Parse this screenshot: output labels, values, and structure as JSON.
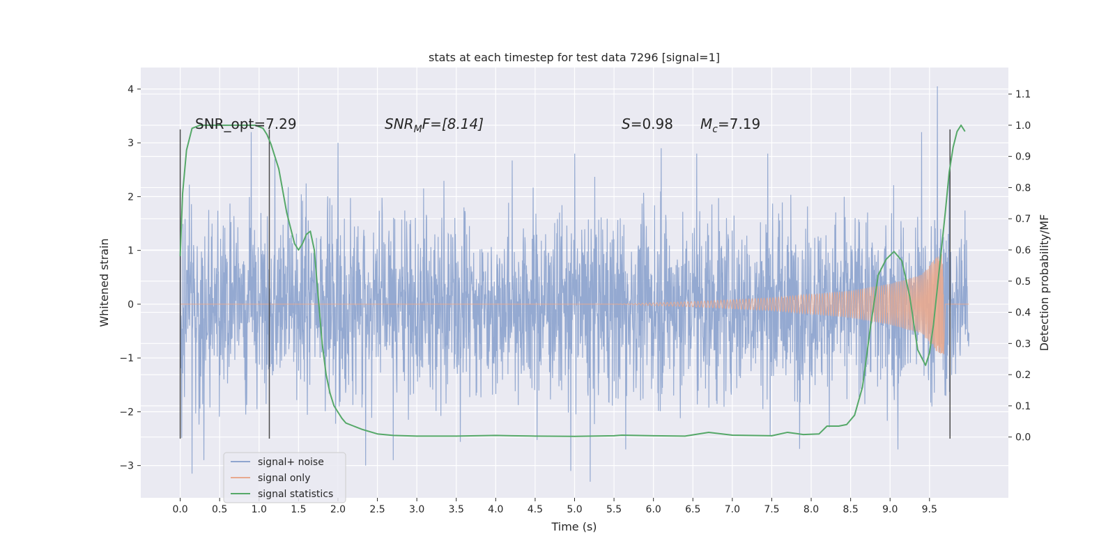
{
  "chart_data": {
    "type": "line",
    "title": "stats at each timestep for test data 7296 [signal=1]",
    "xlabel": "Time (s)",
    "ylabel": "Whitened strain",
    "y2label": "Detection probability/MF",
    "xlim": [
      -0.5,
      10.5
    ],
    "ylim": [
      -3.6,
      4.4
    ],
    "y2lim": [
      -0.195,
      1.185
    ],
    "x_ticks": [
      "0.0",
      "0.5",
      "1.0",
      "1.5",
      "2.0",
      "2.5",
      "3.0",
      "3.5",
      "4.0",
      "4.5",
      "5.0",
      "5.5",
      "6.0",
      "6.5",
      "7.0",
      "7.5",
      "8.0",
      "8.5",
      "9.0",
      "9.5"
    ],
    "y_ticks": [
      "−3",
      "−2",
      "−1",
      "0",
      "1",
      "2",
      "3",
      "4"
    ],
    "y2_ticks": [
      "0.0",
      "0.1",
      "0.2",
      "0.3",
      "0.4",
      "0.5",
      "0.6",
      "0.7",
      "0.8",
      "0.9",
      "1.0",
      "1.1"
    ],
    "grid": true,
    "annotations": {
      "snr_opt": "SNR_opt=7.29",
      "snr_mf_base": "SNR",
      "snr_mf_sub": "M",
      "snr_mf_rest": "F=[8.14]",
      "s_label": "S",
      "s_value": "=0.98",
      "mc_base": "M",
      "mc_sub": "c",
      "mc_value": "=7.19"
    },
    "vertical_markers": [
      {
        "x": 0.0,
        "ymin": -2.5,
        "ymax": 3.25
      },
      {
        "x": 1.13,
        "ymin": -2.5,
        "ymax": 3.25
      },
      {
        "x": 9.76,
        "ymin": -2.5,
        "ymax": 3.25
      }
    ],
    "series": [
      {
        "name": "signal+ noise",
        "color": "#8fa5cf",
        "axis": "left",
        "t_range": [
          0.0,
          10.0
        ],
        "typical_envelope": [
          -1.6,
          1.6
        ],
        "peaks": [
          {
            "x": 0.15,
            "y": 1.2
          },
          {
            "x": 0.9,
            "y": 3.2
          },
          {
            "x": 1.2,
            "y": 2.7
          },
          {
            "x": 2.0,
            "y": 3.0
          },
          {
            "x": 5.0,
            "y": 2.8
          },
          {
            "x": 6.1,
            "y": 2.9
          },
          {
            "x": 6.55,
            "y": 2.8
          },
          {
            "x": 7.45,
            "y": 2.8
          },
          {
            "x": 9.4,
            "y": 3.2
          },
          {
            "x": 9.6,
            "y": 4.05
          }
        ],
        "troughs": [
          {
            "x": 0.15,
            "y": -3.15
          },
          {
            "x": 0.3,
            "y": -2.9
          },
          {
            "x": 2.35,
            "y": -3.0
          },
          {
            "x": 2.7,
            "y": -2.9
          },
          {
            "x": 4.95,
            "y": -3.1
          },
          {
            "x": 5.2,
            "y": -3.3
          },
          {
            "x": 5.65,
            "y": -2.7
          },
          {
            "x": 9.1,
            "y": -2.7
          }
        ]
      },
      {
        "name": "signal only",
        "color": "#e8a98e",
        "axis": "left",
        "chirp_start": 5.5,
        "chirp_end": 9.68,
        "amplitude_points": [
          [
            5.5,
            0.0
          ],
          [
            6.5,
            0.05
          ],
          [
            7.5,
            0.12
          ],
          [
            8.5,
            0.25
          ],
          [
            9.0,
            0.38
          ],
          [
            9.4,
            0.55
          ],
          [
            9.6,
            0.9
          ],
          [
            9.68,
            0.95
          ],
          [
            9.7,
            0.0
          ]
        ]
      },
      {
        "name": "signal statistics",
        "color": "#55a868",
        "axis": "right",
        "x": [
          0.0,
          0.03,
          0.08,
          0.15,
          0.25,
          0.4,
          0.6,
          0.8,
          0.95,
          1.05,
          1.1,
          1.15,
          1.25,
          1.35,
          1.45,
          1.5,
          1.55,
          1.6,
          1.65,
          1.7,
          1.75,
          1.8,
          1.85,
          1.9,
          1.95,
          2.0,
          2.05,
          2.1,
          2.2,
          2.3,
          2.5,
          2.7,
          3.0,
          3.5,
          4.0,
          4.2,
          4.5,
          5.0,
          5.5,
          5.6,
          6.0,
          6.4,
          6.7,
          7.0,
          7.5,
          7.7,
          7.9,
          8.1,
          8.2,
          8.35,
          8.45,
          8.55,
          8.65,
          8.75,
          8.85,
          8.95,
          9.05,
          9.15,
          9.25,
          9.35,
          9.45,
          9.5,
          9.55,
          9.6,
          9.65,
          9.7,
          9.75,
          9.8,
          9.85,
          9.9,
          9.95
        ],
        "values": [
          0.58,
          0.78,
          0.92,
          0.99,
          1.0,
          1.0,
          1.0,
          1.0,
          1.0,
          0.99,
          0.97,
          0.94,
          0.86,
          0.72,
          0.62,
          0.6,
          0.62,
          0.65,
          0.66,
          0.6,
          0.45,
          0.3,
          0.2,
          0.14,
          0.1,
          0.08,
          0.06,
          0.045,
          0.035,
          0.025,
          0.01,
          0.005,
          0.003,
          0.003,
          0.005,
          0.004,
          0.003,
          0.002,
          0.004,
          0.006,
          0.004,
          0.003,
          0.015,
          0.006,
          0.004,
          0.015,
          0.008,
          0.01,
          0.035,
          0.035,
          0.04,
          0.07,
          0.16,
          0.35,
          0.52,
          0.57,
          0.595,
          0.565,
          0.45,
          0.28,
          0.23,
          0.27,
          0.36,
          0.48,
          0.6,
          0.72,
          0.85,
          0.93,
          0.98,
          1.0,
          0.98
        ]
      }
    ],
    "legend": {
      "position": "lower-left",
      "entries": [
        "signal+ noise",
        "signal only",
        "signal statistics"
      ]
    }
  }
}
